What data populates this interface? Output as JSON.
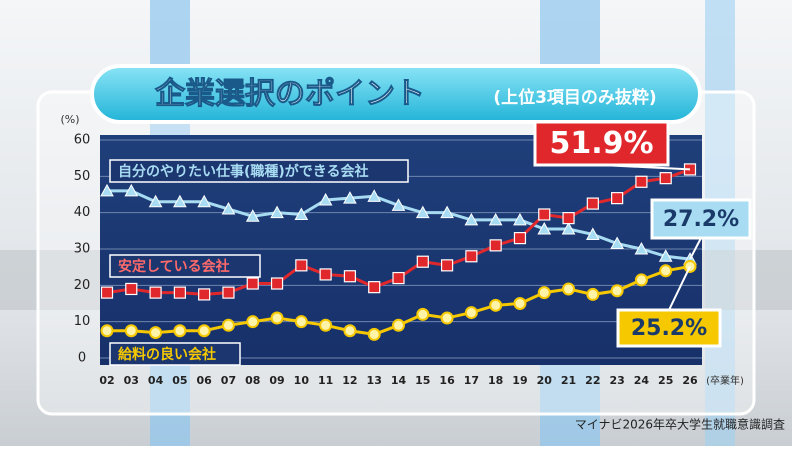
{
  "chart_data": {
    "type": "line",
    "title": "企業選択のポイント",
    "subtitle": "(上位3項目のみ抜粋)",
    "y_unit": "(%)",
    "x_unit": "(卒業年)",
    "source": "マイナビ2026年卒大学生就職意識調査",
    "categories": [
      "02",
      "03",
      "04",
      "05",
      "06",
      "07",
      "08",
      "09",
      "10",
      "11",
      "12",
      "13",
      "14",
      "15",
      "16",
      "17",
      "18",
      "19",
      "20",
      "21",
      "22",
      "23",
      "24",
      "25",
      "26"
    ],
    "ylim": [
      0,
      60
    ],
    "yticks": [
      0,
      10,
      20,
      30,
      40,
      50,
      60
    ],
    "grid": true,
    "series": [
      {
        "name": "自分のやりたい仕事(職種)ができる会社",
        "color": "#a8dcf2",
        "marker": "triangle",
        "values": [
          46,
          46,
          43,
          43,
          43,
          41,
          39,
          40,
          39.5,
          43.5,
          44,
          44.5,
          42,
          40,
          40,
          38,
          38,
          38,
          35.5,
          35.5,
          34,
          31.5,
          30,
          28,
          27.2
        ],
        "value_labels": [
          null,
          null,
          null,
          null,
          null,
          null,
          null,
          null,
          null,
          null,
          null,
          null,
          null,
          null,
          null,
          null,
          null,
          null,
          null,
          null,
          null,
          null,
          null,
          null,
          "27.2%"
        ]
      },
      {
        "name": "安定している会社",
        "color": "#e0282c",
        "marker": "square",
        "values": [
          18,
          19,
          18,
          18,
          17.5,
          18,
          20.5,
          20.5,
          25.5,
          23,
          22.5,
          19.5,
          22,
          26.5,
          25.5,
          28,
          31,
          33,
          39.5,
          38.5,
          42.5,
          44,
          48.5,
          49.5,
          51.9
        ],
        "value_labels": [
          null,
          null,
          null,
          null,
          null,
          null,
          null,
          null,
          null,
          null,
          null,
          null,
          null,
          null,
          null,
          null,
          null,
          null,
          null,
          null,
          null,
          null,
          null,
          null,
          "51.9%"
        ]
      },
      {
        "name": "給料の良い会社",
        "color": "#f5c800",
        "marker": "circle",
        "values": [
          7.5,
          7.5,
          7,
          7.5,
          7.5,
          9,
          10,
          11,
          10,
          9,
          7.5,
          6.5,
          9,
          12,
          11,
          12.5,
          14.5,
          15,
          18,
          19,
          17.5,
          18.5,
          21.5,
          24,
          25.2
        ],
        "value_labels": [
          null,
          null,
          null,
          null,
          null,
          null,
          null,
          null,
          null,
          null,
          null,
          null,
          null,
          null,
          null,
          null,
          null,
          null,
          null,
          null,
          null,
          null,
          null,
          null,
          "25.2%"
        ]
      }
    ]
  }
}
